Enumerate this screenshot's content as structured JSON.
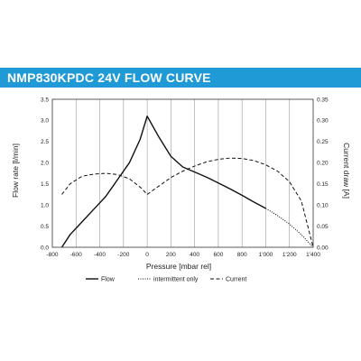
{
  "header": {
    "title": "NMP830KPDC 24V FLOW CURVE"
  },
  "chart_data": {
    "type": "line",
    "xlabel": "Pressure [mbar rel]",
    "ylabel": "Flow rate [l/min]",
    "y2label": "Current draw [A]",
    "xlim": [
      -800,
      1400
    ],
    "ylim": [
      0,
      3.5
    ],
    "y2lim": [
      0,
      0.35
    ],
    "x_ticks": [
      -800,
      -600,
      -400,
      -200,
      0,
      200,
      400,
      600,
      800,
      1000,
      1200,
      1400
    ],
    "x_tick_labels": [
      "-800",
      "-600",
      "-400",
      "-200",
      "0",
      "200",
      "400",
      "600",
      "800",
      "1'000",
      "1'200",
      "1'400"
    ],
    "y_ticks": [
      0,
      0.5,
      1.0,
      1.5,
      2.0,
      2.5,
      3.0,
      3.5
    ],
    "y_tick_labels": [
      "0.0",
      "0.5",
      "1.0",
      "1.5",
      "2.0",
      "2.5",
      "3.0",
      "3.5"
    ],
    "y2_ticks": [
      0,
      0.05,
      0.1,
      0.15,
      0.2,
      0.25,
      0.3,
      0.35
    ],
    "y2_tick_labels": [
      "0.00",
      "0.05",
      "0.10",
      "0.15",
      "0.20",
      "0.25",
      "0.30",
      "0.35"
    ],
    "grid": "vertical",
    "legend_position": "bottom",
    "series": [
      {
        "name": "Flow",
        "axis": "left",
        "style": "solid",
        "x": [
          -720,
          -650,
          -550,
          -450,
          -350,
          -250,
          -150,
          -60,
          0,
          100,
          200,
          300,
          400,
          500,
          600,
          700,
          800,
          900,
          1000
        ],
        "y": [
          0.0,
          0.3,
          0.6,
          0.9,
          1.2,
          1.6,
          2.0,
          2.55,
          3.1,
          2.6,
          2.15,
          1.9,
          1.78,
          1.66,
          1.52,
          1.38,
          1.23,
          1.07,
          0.92
        ]
      },
      {
        "name": "intermittent only",
        "axis": "left",
        "style": "dotted",
        "x": [
          1000,
          1100,
          1200,
          1300,
          1400
        ],
        "y": [
          0.92,
          0.75,
          0.55,
          0.3,
          0.0
        ]
      },
      {
        "name": "Current",
        "axis": "right",
        "style": "dashed",
        "x": [
          -720,
          -650,
          -550,
          -450,
          -350,
          -250,
          -150,
          -50,
          0,
          100,
          200,
          300,
          400,
          500,
          600,
          700,
          800,
          900,
          1000,
          1100,
          1200,
          1300,
          1400
        ],
        "y": [
          0.125,
          0.15,
          0.168,
          0.173,
          0.175,
          0.172,
          0.162,
          0.14,
          0.125,
          0.145,
          0.165,
          0.18,
          0.192,
          0.202,
          0.208,
          0.211,
          0.21,
          0.205,
          0.195,
          0.18,
          0.155,
          0.11,
          0.0
        ]
      }
    ]
  }
}
